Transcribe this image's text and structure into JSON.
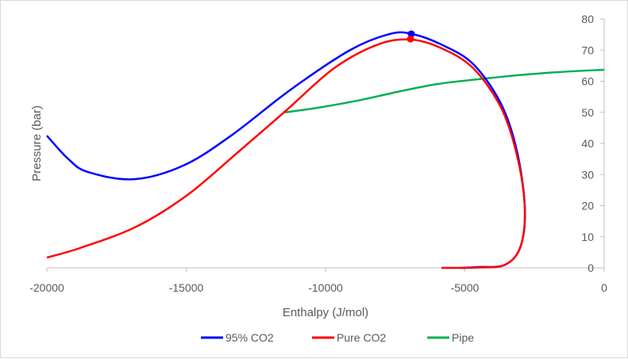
{
  "chart_data": {
    "type": "line",
    "title": "",
    "xlabel": "Enthalpy (J/mol)",
    "ylabel": "Pressure (bar)",
    "xlim": [
      -20000,
      0
    ],
    "ylim": [
      0,
      80
    ],
    "y_axis_side": "right",
    "grid": false,
    "legend_placement": "bottom",
    "x_ticks": [
      "-20000",
      "-15000",
      "-10000",
      "-5000",
      "0"
    ],
    "x_tick_values": [
      -20000,
      -15000,
      -10000,
      -5000,
      0
    ],
    "y_ticks": [
      "0",
      "10",
      "20",
      "30",
      "40",
      "50",
      "60",
      "70",
      "80"
    ],
    "y_tick_values": [
      0,
      10,
      20,
      30,
      40,
      50,
      60,
      70,
      80
    ],
    "series": [
      {
        "name": "95% CO2",
        "color": "#0000ff",
        "points": [
          [
            -20000,
            42.5
          ],
          [
            -19230,
            35
          ],
          [
            -18520,
            30.8
          ],
          [
            -16870,
            28.5
          ],
          [
            -15100,
            32.9
          ],
          [
            -13390,
            42.5
          ],
          [
            -11250,
            57.3
          ],
          [
            -9120,
            70
          ],
          [
            -7690,
            75.2
          ],
          [
            -6900,
            75.2
          ],
          [
            -5840,
            71.8
          ],
          [
            -4700,
            65.5
          ],
          [
            -3700,
            52.7
          ],
          [
            -3130,
            37.5
          ],
          [
            -2850,
            19.6
          ],
          [
            -3000,
            6.9
          ],
          [
            -3560,
            1
          ],
          [
            -4560,
            0.25
          ],
          [
            -5130,
            0
          ]
        ],
        "marker": [
          -6920,
          75.2
        ]
      },
      {
        "name": "Pure CO2",
        "color": "#ff0000",
        "points": [
          [
            -20000,
            3.3
          ],
          [
            -18800,
            6.4
          ],
          [
            -16800,
            13.2
          ],
          [
            -14960,
            23.4
          ],
          [
            -13100,
            37.5
          ],
          [
            -11400,
            50.7
          ],
          [
            -9690,
            64.2
          ],
          [
            -8120,
            71.8
          ],
          [
            -6950,
            73.4
          ],
          [
            -5840,
            70.6
          ],
          [
            -4700,
            64.2
          ],
          [
            -3700,
            51.5
          ],
          [
            -3130,
            36.2
          ],
          [
            -2850,
            19.6
          ],
          [
            -3000,
            6.9
          ],
          [
            -3560,
            1
          ],
          [
            -4560,
            0.1
          ],
          [
            -5840,
            0
          ]
        ],
        "marker": [
          -6950,
          73.6
        ]
      },
      {
        "name": "Pipe",
        "color": "#00b050",
        "points": [
          [
            -11450,
            50
          ],
          [
            -10260,
            51.5
          ],
          [
            -8830,
            53.8
          ],
          [
            -7410,
            56.6
          ],
          [
            -5980,
            59.1
          ],
          [
            -4560,
            60.6
          ],
          [
            -3130,
            61.9
          ],
          [
            -1710,
            62.9
          ],
          [
            0,
            63.7
          ]
        ]
      }
    ]
  }
}
